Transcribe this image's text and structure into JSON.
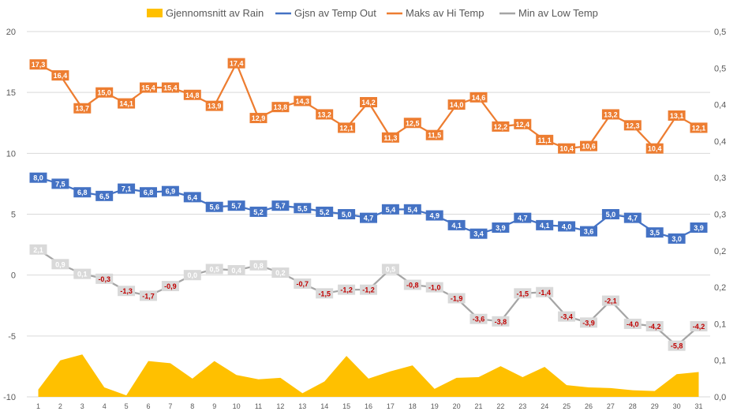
{
  "chart_data": {
    "type": "line",
    "categories": [
      "1",
      "2",
      "3",
      "4",
      "5",
      "6",
      "7",
      "8",
      "9",
      "10",
      "11",
      "12",
      "13",
      "14",
      "15",
      "16",
      "17",
      "18",
      "19",
      "20",
      "21",
      "22",
      "23",
      "24",
      "25",
      "26",
      "27",
      "28",
      "29",
      "30",
      "31"
    ],
    "legend_position": "top",
    "grid": "horizontal",
    "y_left": {
      "ticks": [
        "20",
        "15",
        "10",
        "5",
        "0",
        "-5",
        "-10"
      ],
      "ylim": [
        -10,
        20
      ]
    },
    "y_right": {
      "ticks": [
        "0,5",
        "0,5",
        "0,4",
        "0,4",
        "0,3",
        "0,3",
        "0,2",
        "0,2",
        "0,1",
        "0,1",
        "0,0"
      ],
      "ylim": [
        0,
        0.5
      ]
    },
    "series": [
      {
        "name": "Gjennomsnitt av Rain",
        "type": "area",
        "axis": "right",
        "color": "#FFC000",
        "values": [
          0.01,
          0.05,
          0.058,
          0.013,
          0.002,
          0.049,
          0.046,
          0.025,
          0.049,
          0.03,
          0.024,
          0.026,
          0.005,
          0.021,
          0.056,
          0.025,
          0.035,
          0.043,
          0.011,
          0.026,
          0.027,
          0.042,
          0.027,
          0.041,
          0.016,
          0.013,
          0.012,
          0.009,
          0.008,
          0.031,
          0.034
        ]
      },
      {
        "name": "Gjsn av Temp Out",
        "type": "line",
        "axis": "left",
        "color": "#4472C4",
        "label_text_color": "#ffffff",
        "values": [
          8.0,
          7.5,
          6.8,
          6.5,
          7.1,
          6.8,
          6.9,
          6.4,
          5.6,
          5.7,
          5.2,
          5.7,
          5.5,
          5.2,
          5.0,
          4.7,
          5.4,
          5.4,
          4.9,
          4.1,
          3.4,
          3.9,
          4.7,
          4.1,
          4.0,
          3.6,
          5.0,
          4.7,
          3.5,
          3.0,
          3.9
        ],
        "labels": [
          "8,0",
          "7,5",
          "6,8",
          "6,5",
          "7,1",
          "6,8",
          "6,9",
          "6,4",
          "5,6",
          "5,7",
          "5,2",
          "5,7",
          "5,5",
          "5,2",
          "5,0",
          "4,7",
          "5,4",
          "5,4",
          "4,9",
          "4,1",
          "3,4",
          "3,9",
          "4,7",
          "4,1",
          "4,0",
          "3,6",
          "5,0",
          "4,7",
          "3,5",
          "3,0",
          "3,9"
        ]
      },
      {
        "name": "Maks av Hi Temp",
        "type": "line",
        "axis": "left",
        "color": "#ED7D31",
        "label_text_color": "#ffffff",
        "values": [
          17.3,
          16.4,
          13.7,
          15.0,
          14.1,
          15.4,
          15.4,
          14.8,
          13.9,
          17.4,
          12.9,
          13.8,
          14.3,
          13.2,
          12.1,
          14.2,
          11.3,
          12.5,
          11.5,
          14.0,
          14.6,
          12.2,
          12.4,
          11.1,
          10.4,
          10.6,
          13.2,
          12.3,
          10.4,
          13.1,
          12.1
        ],
        "labels": [
          "17,3",
          "16,4",
          "13,7",
          "15,0",
          "14,1",
          "15,4",
          "15,4",
          "14,8",
          "13,9",
          "17,4",
          "12,9",
          "13,8",
          "14,3",
          "13,2",
          "12,1",
          "14,2",
          "11,3",
          "12,5",
          "11,5",
          "14,0",
          "14,6",
          "12,2",
          "12,4",
          "11,1",
          "10,4",
          "10,6",
          "13,2",
          "12,3",
          "10,4",
          "13,1",
          "12,1"
        ]
      },
      {
        "name": "Min av Low Temp",
        "type": "line",
        "axis": "left",
        "color": "#A5A5A5",
        "label_text_color": "#ffffff",
        "label_text_color_negative": "#C00000",
        "values": [
          2.1,
          0.9,
          0.1,
          -0.3,
          -1.3,
          -1.7,
          -0.9,
          0.0,
          0.5,
          0.4,
          0.8,
          0.2,
          -0.7,
          -1.5,
          -1.2,
          -1.2,
          0.5,
          -0.8,
          -1.0,
          -1.9,
          -3.6,
          -3.8,
          -1.5,
          -1.4,
          -3.4,
          -3.9,
          -2.1,
          -4.0,
          -4.2,
          -5.8,
          -4.2
        ],
        "labels": [
          "2,1",
          "0,9",
          "0,1",
          "-0,3",
          "-1,3",
          "-1,7",
          "-0,9",
          "0,0",
          "0,5",
          "0,4",
          "0,8",
          "0,2",
          "-0,7",
          "-1,5",
          "-1,2",
          "-1,2",
          "0,5",
          "-0,8",
          "-1,0",
          "-1,9",
          "-3,6",
          "-3,8",
          "-1,5",
          "-1,4",
          "-3,4",
          "-3,9",
          "-2,1",
          "-4,0",
          "-4,2",
          "-5,8",
          "-4,2"
        ]
      }
    ]
  }
}
